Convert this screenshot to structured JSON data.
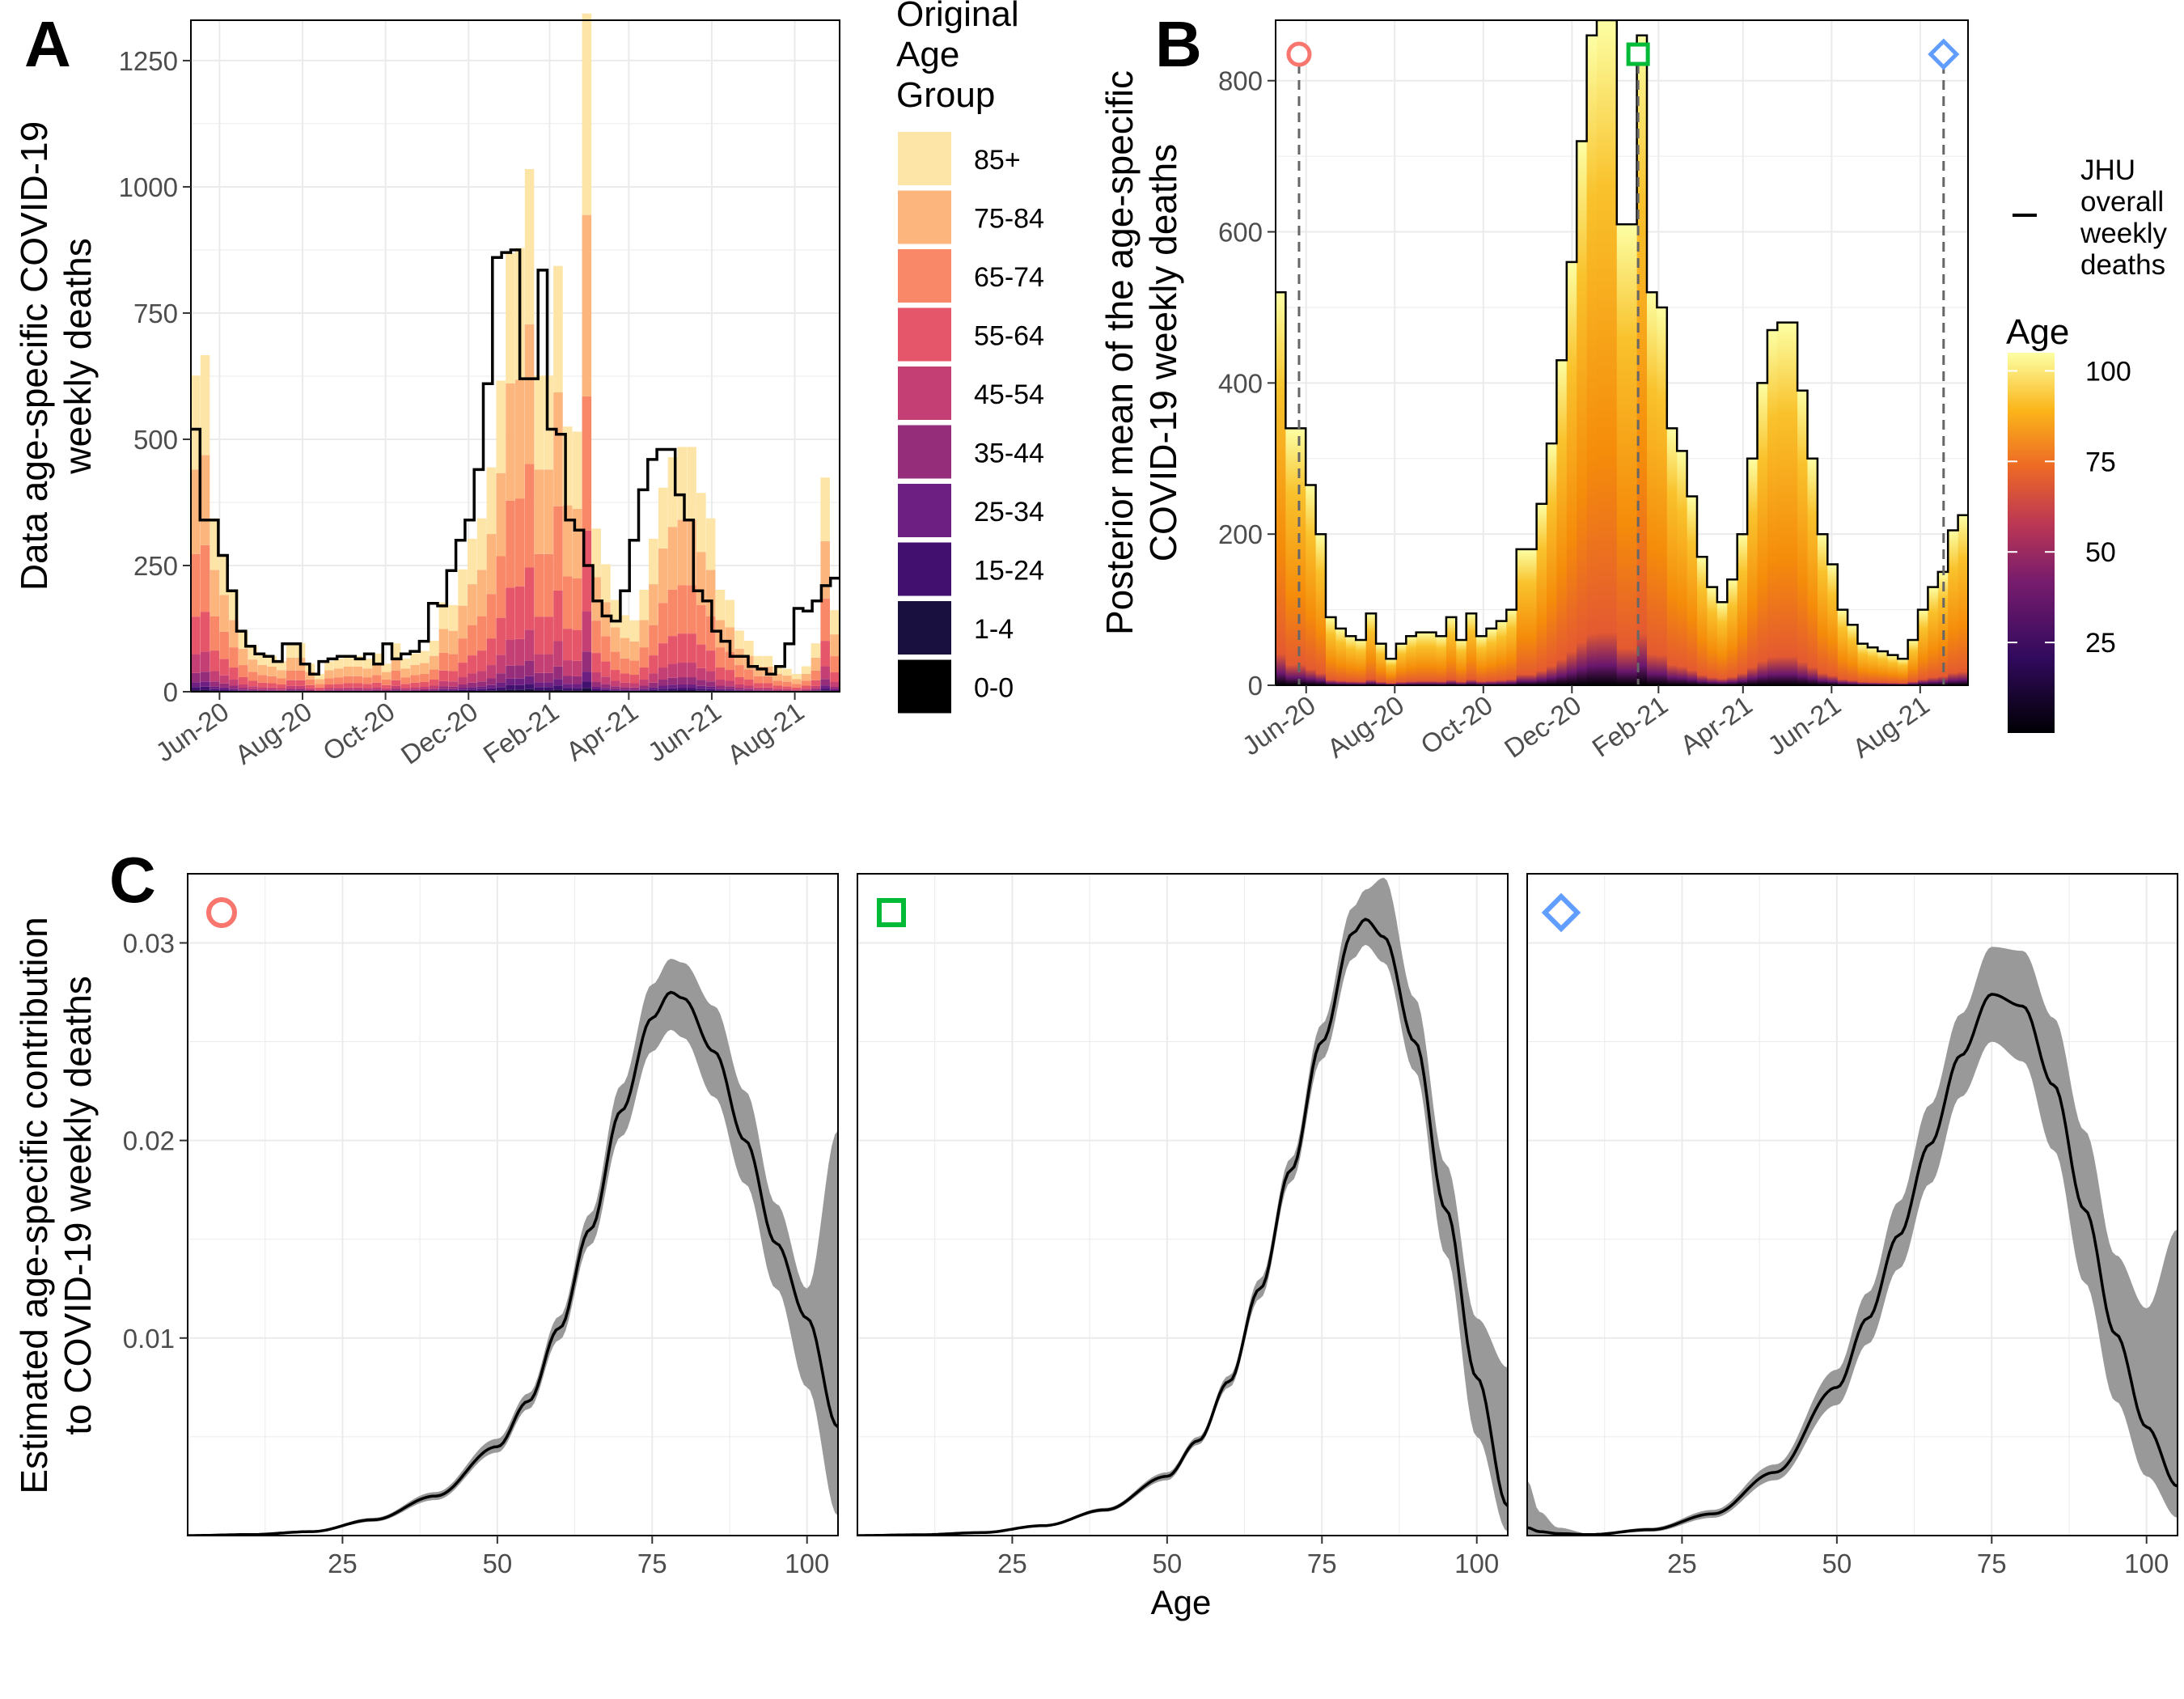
{
  "panel_labels": {
    "a": "A",
    "b": "B",
    "c": "C"
  },
  "chart_data": [
    {
      "id": "A",
      "type": "bar",
      "stacked": true,
      "ylabel": [
        "Data age-specific COVID-19",
        "weekly deaths"
      ],
      "ylim": [
        0,
        1330
      ],
      "yticks": [
        0,
        250,
        500,
        750,
        1000,
        1250
      ],
      "xticks": [
        "Jun-20",
        "Aug-20",
        "Oct-20",
        "Dec-20",
        "Feb-21",
        "Apr-21",
        "Jun-21",
        "Aug-21"
      ],
      "xtick_weeks": [
        3,
        11.7,
        20.4,
        29.1,
        37.6,
        45.9,
        54.6,
        63.3
      ],
      "n_weeks": 68,
      "legend": {
        "title": [
          "Original",
          "Age",
          "Group"
        ],
        "groups": [
          "85+",
          "75-84",
          "65-74",
          "55-64",
          "45-54",
          "35-44",
          "25-34",
          "15-24",
          "1-4",
          "0-0"
        ],
        "colors": [
          "#fde4a7",
          "#fdb57e",
          "#f98868",
          "#e6566a",
          "#c43f73",
          "#962d7a",
          "#6e1f82",
          "#42106e",
          "#1a1040",
          "#000000"
        ]
      },
      "jhu_overall_weekly": [
        520,
        340,
        340,
        270,
        200,
        120,
        90,
        75,
        70,
        60,
        95,
        95,
        55,
        35,
        60,
        65,
        70,
        70,
        65,
        75,
        55,
        95,
        65,
        75,
        80,
        100,
        175,
        170,
        240,
        300,
        340,
        440,
        610,
        860,
        870,
        875,
        620,
        620,
        835,
        520,
        510,
        340,
        320,
        250,
        180,
        150,
        140,
        200,
        300,
        400,
        460,
        480,
        480,
        390,
        340,
        200,
        180,
        120,
        100,
        70,
        70,
        50,
        45,
        35,
        50,
        95,
        165,
        160,
        180,
        210,
        225
      ],
      "jhu_step_edges_weeks": "0 to 68 in equal steps"
    },
    {
      "id": "B",
      "type": "bar",
      "ylabel": [
        "Posterior mean of the age-specific",
        "COVID-19 weekly deaths"
      ],
      "ylim": [
        0,
        880
      ],
      "yticks": [
        0,
        200,
        400,
        600,
        800
      ],
      "xticks": [
        "Jun-20",
        "Aug-20",
        "Oct-20",
        "Dec-20",
        "Feb-21",
        "Apr-21",
        "Jun-21",
        "Aug-21"
      ],
      "xtick_weeks": [
        3,
        11.7,
        20.4,
        29.1,
        37.6,
        45.9,
        54.6,
        63.3
      ],
      "n_weeks": 68,
      "values": [
        520,
        340,
        340,
        265,
        200,
        90,
        75,
        65,
        60,
        95,
        55,
        35,
        55,
        65,
        70,
        70,
        65,
        90,
        60,
        95,
        65,
        75,
        85,
        100,
        180,
        180,
        240,
        320,
        430,
        560,
        720,
        860,
        880,
        880,
        610,
        610,
        860,
        520,
        500,
        340,
        310,
        250,
        170,
        130,
        110,
        140,
        200,
        300,
        400,
        470,
        480,
        480,
        390,
        300,
        200,
        160,
        100,
        80,
        55,
        50,
        45,
        40,
        35,
        60,
        100,
        130,
        150,
        205,
        225
      ],
      "markers": [
        {
          "symbol": "circle",
          "week": 2.3,
          "color": "#f8766d"
        },
        {
          "symbol": "square",
          "week": 35.6,
          "color": "#00ba38"
        },
        {
          "symbol": "diamond",
          "week": 65.6,
          "color": "#619cff"
        }
      ],
      "legend_line": [
        "JHU",
        "overall",
        "weekly",
        "deaths"
      ],
      "colorbar": {
        "title": "Age",
        "ticks": [
          25,
          50,
          75,
          100
        ],
        "range": [
          0,
          105
        ]
      }
    },
    {
      "id": "C",
      "type": "line",
      "xlabel": "Age",
      "ylabel": [
        "Estimated age-specific contribution",
        "to COVID-19 weekly deaths"
      ],
      "xlim": [
        0,
        105
      ],
      "ylim": [
        0,
        0.0335
      ],
      "yticks": [
        0.01,
        0.02,
        0.03
      ],
      "ytick_labels": [
        "0.01",
        "0.02",
        "0.03"
      ],
      "xticks": [
        25,
        50,
        75,
        100
      ],
      "panels": [
        {
          "marker": "circle",
          "marker_color": "#f8766d",
          "x": [
            0,
            10,
            20,
            30,
            40,
            50,
            55,
            60,
            65,
            70,
            75,
            78,
            80,
            85,
            90,
            95,
            100,
            105
          ],
          "mean": [
            0,
            5e-05,
            0.0002,
            0.0008,
            0.002,
            0.0045,
            0.0068,
            0.0105,
            0.0155,
            0.0215,
            0.0262,
            0.0275,
            0.0272,
            0.0245,
            0.02,
            0.0148,
            0.011,
            0.0055
          ],
          "lower": [
            0,
            3e-05,
            0.00015,
            0.0007,
            0.0018,
            0.0042,
            0.0064,
            0.0099,
            0.0147,
            0.0202,
            0.0245,
            0.0256,
            0.0252,
            0.0222,
            0.0178,
            0.0125,
            0.0075,
            0.001
          ],
          "upper": [
            0,
            8e-05,
            0.00025,
            0.0009,
            0.0022,
            0.0049,
            0.0072,
            0.0111,
            0.0163,
            0.0228,
            0.0279,
            0.0292,
            0.029,
            0.0268,
            0.0225,
            0.0168,
            0.0125,
            0.0205
          ]
        },
        {
          "marker": "square",
          "marker_color": "#00ba38",
          "x": [
            0,
            10,
            20,
            30,
            40,
            50,
            55,
            60,
            65,
            70,
            75,
            80,
            82,
            85,
            90,
            95,
            100,
            105
          ],
          "mean": [
            0,
            4e-05,
            0.00015,
            0.0005,
            0.0013,
            0.003,
            0.0048,
            0.0078,
            0.0125,
            0.0185,
            0.025,
            0.0305,
            0.0312,
            0.0303,
            0.025,
            0.0165,
            0.008,
            0.0015
          ],
          "lower": [
            0,
            3e-05,
            0.00012,
            0.00045,
            0.0012,
            0.0028,
            0.0046,
            0.0075,
            0.012,
            0.0179,
            0.0241,
            0.0292,
            0.0299,
            0.029,
            0.0235,
            0.0142,
            0.005,
            0.0002
          ],
          "upper": [
            0,
            5e-05,
            0.00018,
            0.00055,
            0.0014,
            0.0032,
            0.005,
            0.0081,
            0.013,
            0.0191,
            0.0259,
            0.0318,
            0.0327,
            0.0333,
            0.0272,
            0.0188,
            0.011,
            0.0085
          ]
        },
        {
          "marker": "diamond",
          "marker_color": "#619cff",
          "x": [
            0,
            2,
            5,
            10,
            20,
            30,
            40,
            50,
            55,
            60,
            65,
            70,
            75,
            80,
            85,
            90,
            95,
            100,
            105
          ],
          "mean": [
            0.0004,
            0.0002,
            0.0001,
            5e-05,
            0.0003,
            0.0011,
            0.0032,
            0.0075,
            0.011,
            0.0152,
            0.0198,
            0.0243,
            0.0274,
            0.0268,
            0.0228,
            0.0165,
            0.0102,
            0.0055,
            0.0025
          ],
          "lower": [
            0,
            0,
            0,
            0,
            0.0002,
            0.0009,
            0.0028,
            0.0066,
            0.0097,
            0.0135,
            0.0178,
            0.0222,
            0.025,
            0.024,
            0.0195,
            0.0128,
            0.0068,
            0.003,
            0.0009
          ],
          "upper": [
            0.0028,
            0.0012,
            0.0004,
            0.0001,
            0.0004,
            0.0013,
            0.0036,
            0.0084,
            0.0123,
            0.0169,
            0.0218,
            0.0264,
            0.0298,
            0.0296,
            0.0262,
            0.0205,
            0.0142,
            0.0115,
            0.0155
          ]
        }
      ]
    }
  ]
}
